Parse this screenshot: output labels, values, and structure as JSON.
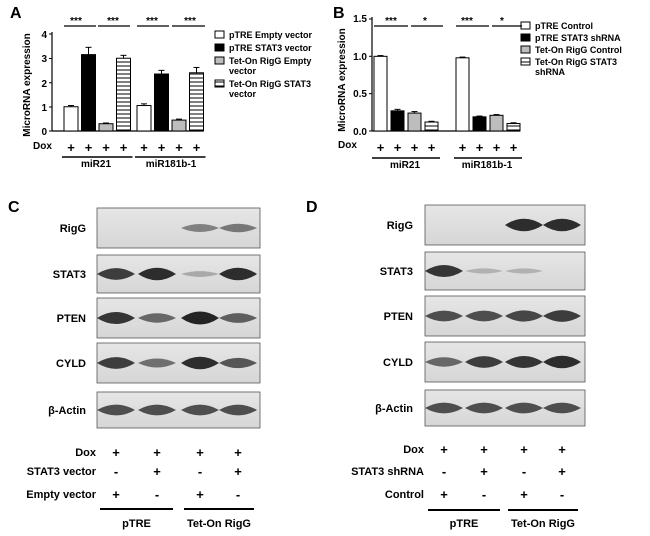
{
  "panels": {
    "a": {
      "letter": "A"
    },
    "b": {
      "letter": "B"
    },
    "c": {
      "letter": "C"
    },
    "d": {
      "letter": "D"
    }
  },
  "chart_data": [
    {
      "panel": "A",
      "type": "bar",
      "ylabel": "MicroRNA expression",
      "ylim": [
        0,
        4
      ],
      "yticks": [
        "0",
        "1",
        "2",
        "3",
        "4"
      ],
      "groups": [
        "miR21",
        "miR181b-1"
      ],
      "dox_label": "Dox",
      "dox_marks": [
        "+",
        "+",
        "+",
        "+",
        "+",
        "+",
        "+",
        "+"
      ],
      "significance": [
        "***",
        "***",
        "***",
        "***"
      ],
      "legend": [
        "pTRE Empty vector",
        "pTRE STAT3 vector",
        "Tet-On RigG Empty vector",
        "Tet-On RigG STAT3 vector"
      ],
      "series": [
        {
          "name": "pTRE Empty vector",
          "values": [
            1.0,
            1.05
          ],
          "errors": [
            0.05,
            0.07
          ],
          "fill": "#ffffff"
        },
        {
          "name": "pTRE STAT3 vector",
          "values": [
            3.15,
            2.35
          ],
          "errors": [
            0.3,
            0.15
          ],
          "fill": "#000000"
        },
        {
          "name": "Tet-On RigG Empty vector",
          "values": [
            0.3,
            0.45
          ],
          "errors": [
            0.03,
            0.04
          ],
          "fill": "#bdbdbd"
        },
        {
          "name": "Tet-On RigG STAT3 vector",
          "values": [
            3.0,
            2.4
          ],
          "errors": [
            0.12,
            0.22
          ],
          "fill": "stripe"
        }
      ]
    },
    {
      "panel": "B",
      "type": "bar",
      "ylabel": "MicroRNA expression",
      "ylim": [
        0,
        1.5
      ],
      "yticks": [
        "0.0",
        "0.5",
        "1.0",
        "1.5"
      ],
      "groups": [
        "miR21",
        "miR181b-1"
      ],
      "dox_label": "Dox",
      "dox_marks": [
        "+",
        "+",
        "+",
        "+",
        "+",
        "+",
        "+",
        "+"
      ],
      "significance": [
        "***",
        "*",
        "***",
        "*"
      ],
      "legend": [
        "pTRE Control",
        "pTRE STAT3 shRNA",
        "Tet-On RigG Control",
        "Tet-On RigG STAT3 shRNA"
      ],
      "series": [
        {
          "name": "pTRE Control",
          "values": [
            1.0,
            0.98
          ],
          "errors": [
            0.01,
            0.01
          ],
          "fill": "#ffffff"
        },
        {
          "name": "pTRE STAT3 shRNA",
          "values": [
            0.27,
            0.19
          ],
          "errors": [
            0.02,
            0.01
          ],
          "fill": "#000000"
        },
        {
          "name": "Tet-On RigG Control",
          "values": [
            0.24,
            0.21
          ],
          "errors": [
            0.02,
            0.01
          ],
          "fill": "#bdbdbd"
        },
        {
          "name": "Tet-On RigG STAT3 shRNA",
          "values": [
            0.12,
            0.1
          ],
          "errors": [
            0.01,
            0.01
          ],
          "fill": "stripe"
        }
      ]
    }
  ],
  "blot_c": {
    "rows": [
      {
        "label": "RigG",
        "bands": [
          0.0,
          0.0,
          0.45,
          0.5
        ]
      },
      {
        "label": "STAT3",
        "bands": [
          0.85,
          0.95,
          0.2,
          0.95
        ]
      },
      {
        "label": "PTEN",
        "bands": [
          0.9,
          0.6,
          1.0,
          0.65
        ]
      },
      {
        "label": "CYLD",
        "bands": [
          0.85,
          0.55,
          0.95,
          0.7
        ]
      },
      {
        "label": "β-Actin",
        "bands": [
          0.75,
          0.75,
          0.75,
          0.75
        ]
      }
    ],
    "conditions": [
      {
        "label": "Dox",
        "marks": [
          "+",
          "+",
          "+",
          "+"
        ]
      },
      {
        "label": "STAT3 vector",
        "marks": [
          "-",
          "+",
          "-",
          "+"
        ]
      },
      {
        "label": "Empty vector",
        "marks": [
          "+",
          "-",
          "+",
          "-"
        ]
      }
    ],
    "groups": [
      "pTRE",
      "Tet-On RigG"
    ]
  },
  "blot_d": {
    "rows": [
      {
        "label": "RigG",
        "bands": [
          0.0,
          0.0,
          0.95,
          0.95
        ]
      },
      {
        "label": "STAT3",
        "bands": [
          0.9,
          0.15,
          0.15,
          0.0
        ]
      },
      {
        "label": "PTEN",
        "bands": [
          0.75,
          0.75,
          0.8,
          0.85
        ]
      },
      {
        "label": "CYLD",
        "bands": [
          0.6,
          0.85,
          0.9,
          0.95
        ]
      },
      {
        "label": "β-Actin",
        "bands": [
          0.75,
          0.75,
          0.75,
          0.75
        ]
      }
    ],
    "conditions": [
      {
        "label": "Dox",
        "marks": [
          "+",
          "+",
          "+",
          "+"
        ]
      },
      {
        "label": "STAT3 shRNA",
        "marks": [
          "-",
          "+",
          "-",
          "+"
        ]
      },
      {
        "label": "Control",
        "marks": [
          "+",
          "-",
          "+",
          "-"
        ]
      }
    ],
    "groups": [
      "pTRE",
      "Tet-On RigG"
    ]
  }
}
